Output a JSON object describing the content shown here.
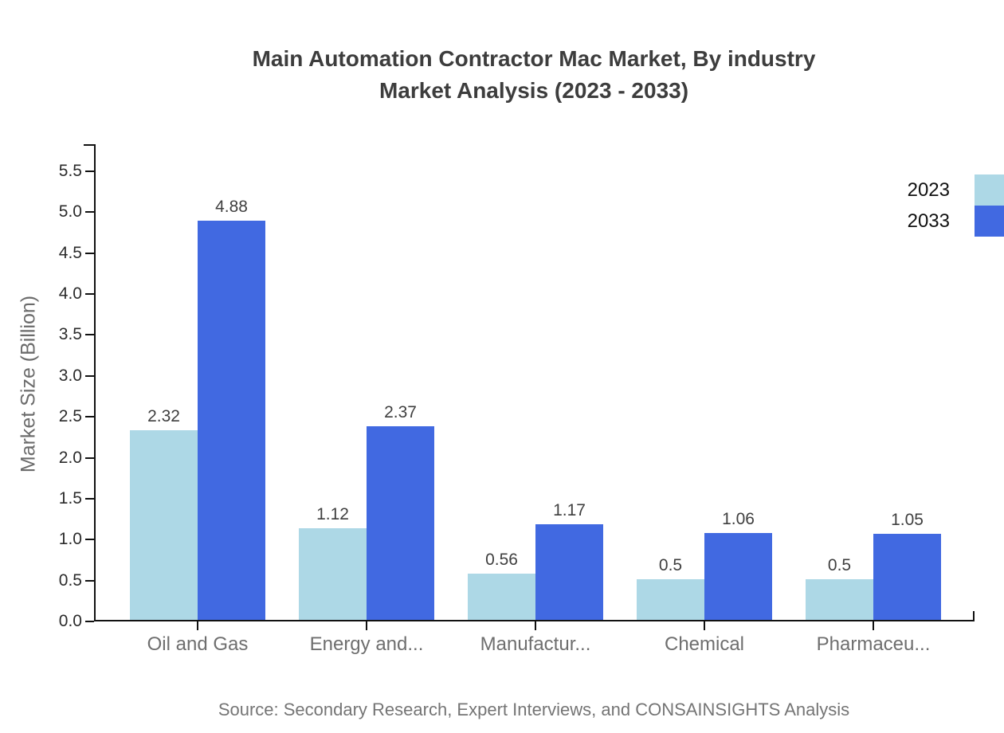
{
  "page": {
    "title_line1": "Main Automation Contractor Mac Market, By industry",
    "title_line2": "Market Analysis (2023 - 2033)",
    "source": "Source: Secondary Research, Expert Interviews, and CONSAINSIGHTS Analysis"
  },
  "chart_data": {
    "type": "bar",
    "title": "Main Automation Contractor Mac Market, By industry Market Analysis (2023 - 2033)",
    "ylabel": "Market Size (Billion)",
    "xlabel": "",
    "categories": [
      "Oil and Gas",
      "Energy and...",
      "Manufactur...",
      "Chemical",
      "Pharmaceu..."
    ],
    "series": [
      {
        "name": "2023",
        "color": "#ADD8E6",
        "values": [
          2.32,
          1.12,
          0.56,
          0.5,
          0.5
        ],
        "labels": [
          "2.32",
          "1.12",
          "0.56",
          "0.5",
          "0.5"
        ]
      },
      {
        "name": "2033",
        "color": "#4169E1",
        "values": [
          4.88,
          2.37,
          1.17,
          1.06,
          1.05
        ],
        "labels": [
          "4.88",
          "2.37",
          "1.17",
          "1.06",
          "1.05"
        ]
      }
    ],
    "ylim": [
      0,
      5.5
    ],
    "ytick_step": 0.5,
    "yticks": [
      "0.0",
      "0.5",
      "1.0",
      "1.5",
      "2.0",
      "2.5",
      "3.0",
      "3.5",
      "4.0",
      "4.5",
      "5.0",
      "5.5"
    ],
    "grid": false,
    "legend_position": "top-right",
    "axis_color": "#111111"
  }
}
